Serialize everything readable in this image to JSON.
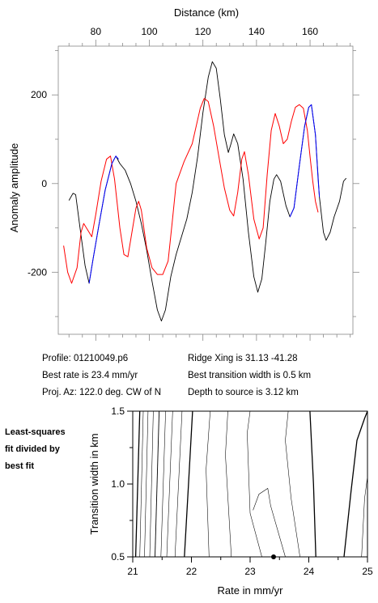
{
  "chart_data": [
    {
      "type": "line",
      "title": "",
      "xlabel": "Distance (km)",
      "ylabel": "Anomaly amplitude",
      "xlim": [
        66,
        176
      ],
      "ylim": [
        -340,
        310
      ],
      "xticks": [
        80,
        100,
        120,
        140,
        160
      ],
      "yticks": [
        -200,
        0,
        200
      ],
      "x_axis_position": "top",
      "grid": false,
      "series": [
        {
          "key": "observed",
          "color": "#000000",
          "points": [
            [
              70,
              -38
            ],
            [
              71.5,
              -22
            ],
            [
              72.5,
              -25
            ],
            [
              74,
              -95
            ],
            [
              76,
              -185
            ],
            [
              77.5,
              -225
            ],
            [
              79,
              -170
            ],
            [
              81,
              -100
            ],
            [
              83.5,
              -15
            ],
            [
              86,
              45
            ],
            [
              87.5,
              62
            ],
            [
              89,
              45
            ],
            [
              91,
              30
            ],
            [
              93,
              0
            ],
            [
              95,
              -40
            ],
            [
              97,
              -90
            ],
            [
              99,
              -150
            ],
            [
              101,
              -220
            ],
            [
              103,
              -285
            ],
            [
              104.5,
              -310
            ],
            [
              106,
              -285
            ],
            [
              108,
              -210
            ],
            [
              110,
              -160
            ],
            [
              112,
              -120
            ],
            [
              114,
              -80
            ],
            [
              116,
              -20
            ],
            [
              118,
              60
            ],
            [
              120,
              160
            ],
            [
              122,
              240
            ],
            [
              123.5,
              275
            ],
            [
              125,
              260
            ],
            [
              126.5,
              190
            ],
            [
              128,
              110
            ],
            [
              129.5,
              70
            ],
            [
              130.5,
              90
            ],
            [
              131.5,
              112
            ],
            [
              133,
              90
            ],
            [
              135,
              10
            ],
            [
              137,
              -110
            ],
            [
              139,
              -210
            ],
            [
              140.5,
              -245
            ],
            [
              142,
              -215
            ],
            [
              143.5,
              -130
            ],
            [
              145,
              -40
            ],
            [
              146.5,
              10
            ],
            [
              147.5,
              20
            ],
            [
              149,
              5
            ],
            [
              151,
              -50
            ],
            [
              152.5,
              -75
            ],
            [
              154,
              -55
            ],
            [
              156,
              40
            ],
            [
              158,
              130
            ],
            [
              159.5,
              172
            ],
            [
              160.5,
              178
            ],
            [
              162,
              110
            ],
            [
              163.5,
              -30
            ],
            [
              165,
              -110
            ],
            [
              166,
              -128
            ],
            [
              167.5,
              -110
            ],
            [
              169,
              -75
            ],
            [
              171,
              -40
            ],
            [
              172.5,
              5
            ],
            [
              173.5,
              12
            ]
          ]
        },
        {
          "key": "model",
          "color": "#ff0000",
          "points": [
            [
              68,
              -140
            ],
            [
              69.5,
              -200
            ],
            [
              71,
              -225
            ],
            [
              73,
              -190
            ],
            [
              74.5,
              -110
            ],
            [
              75.5,
              -90
            ],
            [
              77,
              -105
            ],
            [
              78.5,
              -120
            ],
            [
              80,
              -70
            ],
            [
              82,
              5
            ],
            [
              84,
              55
            ],
            [
              85.5,
              62
            ],
            [
              87,
              10
            ],
            [
              89,
              -100
            ],
            [
              90.5,
              -160
            ],
            [
              92,
              -165
            ],
            [
              93.5,
              -110
            ],
            [
              95,
              -55
            ],
            [
              96,
              -40
            ],
            [
              97,
              -60
            ],
            [
              99,
              -145
            ],
            [
              101,
              -190
            ],
            [
              103,
              -205
            ],
            [
              105,
              -205
            ],
            [
              107,
              -175
            ],
            [
              108.5,
              -90
            ],
            [
              110,
              0
            ],
            [
              113,
              50
            ],
            [
              116,
              90
            ],
            [
              119,
              170
            ],
            [
              120.5,
              192
            ],
            [
              122,
              185
            ],
            [
              124,
              130
            ],
            [
              126,
              60
            ],
            [
              128,
              -10
            ],
            [
              130,
              -60
            ],
            [
              131.5,
              -73
            ],
            [
              133,
              -20
            ],
            [
              134.5,
              55
            ],
            [
              135.5,
              72
            ],
            [
              137,
              20
            ],
            [
              139,
              -80
            ],
            [
              141,
              -125
            ],
            [
              142.5,
              -100
            ],
            [
              144,
              20
            ],
            [
              145.5,
              120
            ],
            [
              147,
              158
            ],
            [
              148.5,
              130
            ],
            [
              150,
              90
            ],
            [
              151.5,
              100
            ],
            [
              153,
              140
            ],
            [
              154.5,
              172
            ],
            [
              156,
              178
            ],
            [
              157.5,
              170
            ],
            [
              159,
              120
            ],
            [
              160,
              60
            ],
            [
              161,
              5
            ],
            [
              162,
              -40
            ],
            [
              163,
              -65
            ]
          ]
        },
        {
          "key": "fit-segment-1",
          "color": "#0000ff",
          "points": [
            [
              77.5,
              -225
            ],
            [
              79,
              -170
            ],
            [
              81,
              -100
            ],
            [
              83.5,
              -15
            ],
            [
              86,
              45
            ],
            [
              87.5,
              62
            ],
            [
              88.5,
              55
            ]
          ]
        },
        {
          "key": "fit-segment-2",
          "color": "#0000ff",
          "points": [
            [
              152.5,
              -75
            ],
            [
              154,
              -55
            ],
            [
              156,
              40
            ],
            [
              158,
              130
            ],
            [
              159.5,
              172
            ],
            [
              160.5,
              178
            ],
            [
              162,
              110
            ],
            [
              163,
              10
            ],
            [
              163.5,
              -30
            ]
          ]
        }
      ]
    },
    {
      "type": "contour",
      "xlabel": "Rate in mm/yr",
      "ylabel": "Transition width in km",
      "xlim": [
        21,
        25
      ],
      "ylim": [
        0.5,
        1.5
      ],
      "xticks": [
        21,
        22,
        23,
        24,
        25
      ],
      "yticks": [
        0.5,
        1.0,
        1.5
      ],
      "contours": [
        {
          "points": [
            [
              21.05,
              0.5
            ],
            [
              21.12,
              1.5
            ]
          ],
          "weight": "heavy"
        },
        {
          "points": [
            [
              21.12,
              0.5
            ],
            [
              21.18,
              1.5
            ]
          ],
          "weight": "light"
        },
        {
          "points": [
            [
              21.2,
              0.5
            ],
            [
              21.26,
              1.5
            ]
          ],
          "weight": "light"
        },
        {
          "points": [
            [
              21.29,
              0.5
            ],
            [
              21.35,
              1.5
            ]
          ],
          "weight": "light"
        },
        {
          "points": [
            [
              21.38,
              0.5
            ],
            [
              21.45,
              1.5
            ]
          ],
          "weight": "medium"
        },
        {
          "points": [
            [
              21.48,
              0.5
            ],
            [
              21.56,
              1.5
            ]
          ],
          "weight": "light"
        },
        {
          "points": [
            [
              21.58,
              0.5
            ],
            [
              21.68,
              1.5
            ]
          ],
          "weight": "light"
        },
        {
          "points": [
            [
              21.72,
              0.5
            ],
            [
              21.84,
              1.5
            ]
          ],
          "weight": "light"
        },
        {
          "points": [
            [
              21.88,
              0.5
            ],
            [
              21.95,
              1.0
            ],
            [
              22.02,
              1.5
            ]
          ],
          "weight": "heavy"
        },
        {
          "points": [
            [
              22.3,
              0.5
            ],
            [
              22.25,
              1.1
            ],
            [
              22.32,
              1.5
            ]
          ],
          "weight": "light"
        },
        {
          "points": [
            [
              22.68,
              0.5
            ],
            [
              22.58,
              1.2
            ],
            [
              22.62,
              1.5
            ]
          ],
          "weight": "light"
        },
        {
          "points": [
            [
              23.2,
              0.5
            ],
            [
              23.0,
              0.8
            ],
            [
              22.95,
              1.35
            ],
            [
              23.0,
              1.5
            ]
          ],
          "weight": "light"
        },
        {
          "points": [
            [
              23.6,
              0.5
            ],
            [
              23.35,
              0.85
            ],
            [
              23.3,
              0.97
            ],
            [
              23.15,
              0.93
            ],
            [
              23.05,
              0.82
            ]
          ],
          "weight": "light"
        },
        {
          "points": [
            [
              23.85,
              0.5
            ],
            [
              23.7,
              0.9
            ],
            [
              23.6,
              1.3
            ],
            [
              23.65,
              1.5
            ]
          ],
          "weight": "light"
        },
        {
          "points": [
            [
              24.12,
              0.5
            ],
            [
              24.08,
              1.0
            ],
            [
              24.02,
              1.5
            ]
          ],
          "weight": "heavy"
        },
        {
          "points": [
            [
              24.6,
              0.5
            ],
            [
              24.72,
              0.95
            ],
            [
              24.82,
              1.3
            ],
            [
              24.95,
              1.45
            ],
            [
              25.0,
              1.5
            ]
          ],
          "weight": "heavy"
        },
        {
          "points": [
            [
              24.9,
              0.5
            ],
            [
              24.95,
              0.9
            ],
            [
              25.0,
              1.05
            ]
          ],
          "weight": "light"
        }
      ],
      "best_fit": {
        "x": 23.4,
        "y": 0.5
      }
    }
  ],
  "info": {
    "profile": "Profile: 01210049.p6",
    "best_rate": "Best rate is 23.4 mm/yr",
    "proj_az": "Proj. Az: 122.0 deg. CW of N",
    "ridge_xing": "Ridge Xing is 31.13 -41.28",
    "best_width": "Best transition width is 0.5 km",
    "depth": "Depth to source is   3.12 km"
  },
  "side_note": [
    "Least-squares",
    "fit divided by",
    "best fit"
  ]
}
